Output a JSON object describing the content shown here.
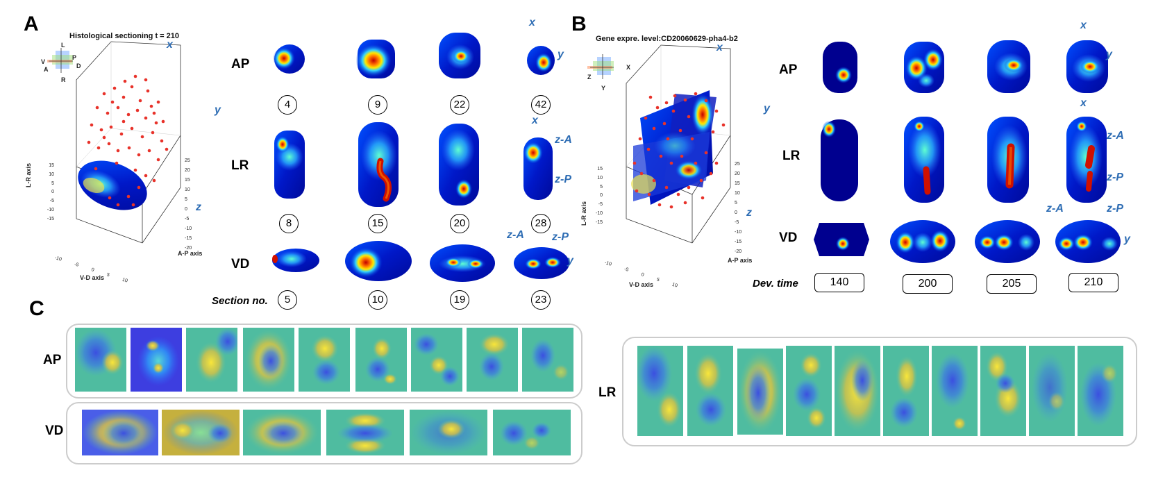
{
  "panels": {
    "a": "A",
    "b": "B",
    "c": "C"
  },
  "colors": {
    "axis_blue": "#2e6db4",
    "dot_red": "#e8322a",
    "jet_dark": "#00008f",
    "parula_mid": "#3fbf9e"
  },
  "panel_a": {
    "title": "Histological sectioning t = 210",
    "orient": {
      "L": "L",
      "R": "R",
      "V": "V",
      "A": "A",
      "P": "P",
      "D": "D"
    },
    "axes": {
      "x": "x",
      "y": "y",
      "z": "z",
      "lr": "L-R axis",
      "vd": "V-D axis",
      "ap": "A-P axis"
    },
    "lr_ticks": [
      "15",
      "10",
      "5",
      "0",
      "-5",
      "-10",
      "-15"
    ],
    "vd_ticks": [
      "-10",
      "-5",
      "0",
      "5",
      "10"
    ],
    "ap_ticks": [
      "25",
      "20",
      "15",
      "10",
      "5",
      "0",
      "-5",
      "-10",
      "-15",
      "-20"
    ],
    "rows": {
      "ap": "AP",
      "lr": "LR",
      "vd": "VD"
    },
    "ap_nums": [
      "4",
      "9",
      "22",
      "42"
    ],
    "lr_nums": [
      "8",
      "15",
      "20",
      "28"
    ],
    "vd_nums": [
      "5",
      "10",
      "19",
      "23"
    ],
    "section_label": "Section no.",
    "inset_labels": {
      "x_ap": "x",
      "y_ap": "y",
      "x_lr": "x",
      "za_lr": "z-A",
      "zp_lr": "z-P",
      "za_vd": "z-A",
      "zp_vd": "z-P",
      "y_vd": "y"
    }
  },
  "panel_b": {
    "title": "Gene expre. level:CD20060629-pha4-b2",
    "orient": {
      "x": "X",
      "y": "Y",
      "z": "Z"
    },
    "axes": {
      "x": "x",
      "y": "y",
      "z": "z",
      "lr": "L-R axis",
      "vd": "V-D axis",
      "ap": "A-P axis"
    },
    "lr_ticks": [
      "15",
      "10",
      "5",
      "0",
      "-5",
      "-10",
      "-15"
    ],
    "vd_ticks": [
      "-10",
      "-5",
      "0",
      "5",
      "10"
    ],
    "ap_ticks": [
      "25",
      "20",
      "15",
      "10",
      "5",
      "0",
      "-5",
      "-10",
      "-15",
      "-20"
    ],
    "rows": {
      "ap": "AP",
      "lr": "LR",
      "vd": "VD"
    },
    "dev_time_label": "Dev. time",
    "times": [
      "140",
      "200",
      "205",
      "210"
    ],
    "inset_labels": {
      "x_ap": "x",
      "y_ap": "y",
      "x_lr": "x",
      "za_lr": "z-A",
      "zp_lr": "z-P",
      "za_vd": "z-A",
      "zp_vd": "z-P",
      "y_vd": "y"
    }
  },
  "panel_c": {
    "ap": "AP",
    "vd": "VD",
    "lr": "LR"
  }
}
